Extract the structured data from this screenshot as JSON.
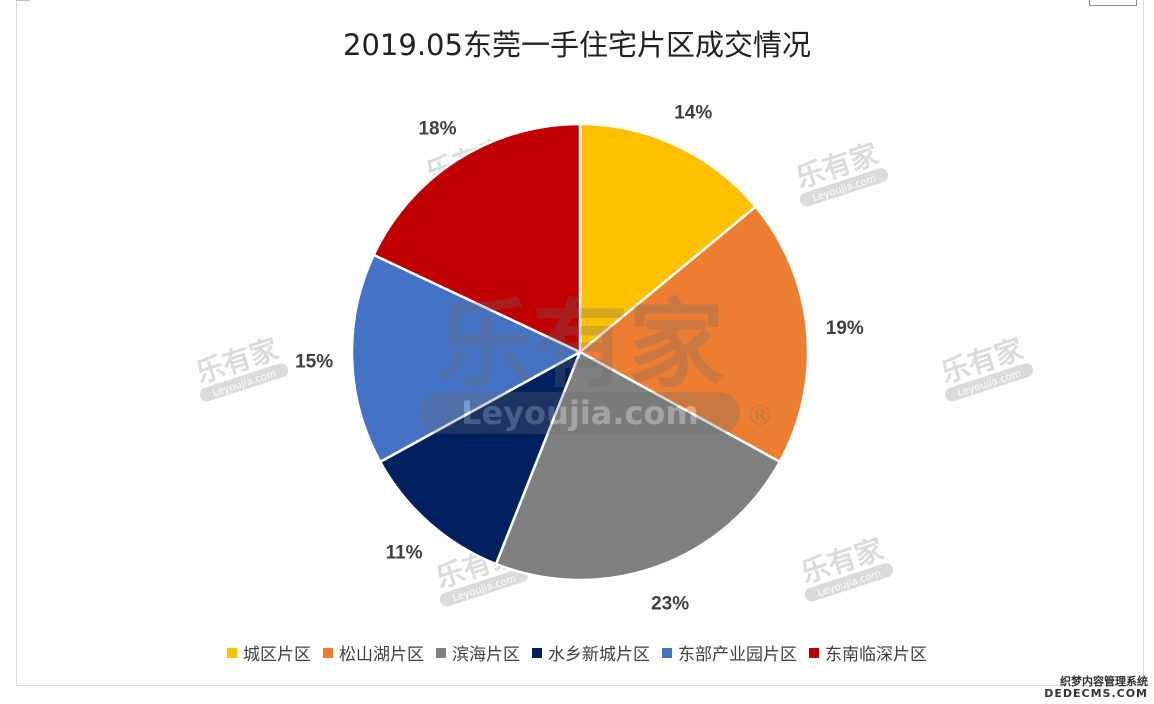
{
  "chart_data": {
    "type": "pie",
    "title": "2019.05东莞一手住宅片区成交情况",
    "categories": [
      "城区片区",
      "松山湖片区",
      "滨海片区",
      "水乡新城片区",
      "东部产业园片区",
      "东南临深片区"
    ],
    "values": [
      14,
      19,
      23,
      11,
      15,
      18
    ],
    "labels": [
      "14%",
      "19%",
      "23%",
      "11%",
      "15%",
      "18%"
    ],
    "colors": [
      "#FFC000",
      "#ED7D31",
      "#808080",
      "#002060",
      "#4472C4",
      "#C00000"
    ],
    "legend_position": "bottom",
    "start_angle": "12 o'clock, clockwise"
  },
  "watermark": {
    "brand_cn": "乐有家",
    "brand_en": "Leyoujia.com",
    "registered": "®"
  },
  "corner_brand": {
    "cn": "织梦内容管理系统",
    "en": "DEDECMS.COM"
  }
}
